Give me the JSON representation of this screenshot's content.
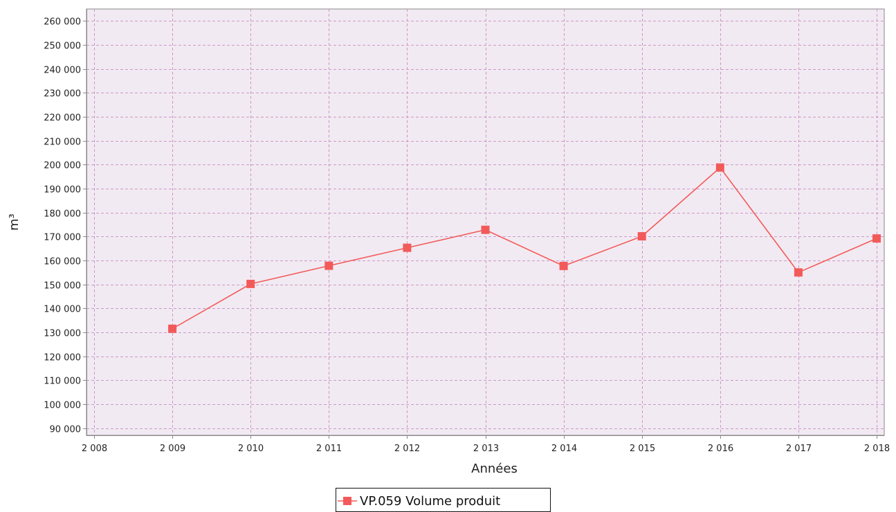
{
  "chart_data": {
    "type": "line",
    "title": "",
    "xlabel": "Années",
    "ylabel": "m³",
    "xlim": [
      2008,
      2018
    ],
    "ylim": [
      87000,
      265000
    ],
    "x_ticks": [
      2008,
      2009,
      2010,
      2011,
      2012,
      2013,
      2014,
      2015,
      2016,
      2017,
      2018
    ],
    "x_tick_labels": [
      "2 008",
      "2 009",
      "2 010",
      "2 011",
      "2 012",
      "2 013",
      "2 014",
      "2 015",
      "2 016",
      "2 017",
      "2 018"
    ],
    "y_ticks": [
      90000,
      100000,
      110000,
      120000,
      130000,
      140000,
      150000,
      160000,
      170000,
      180000,
      190000,
      200000,
      210000,
      220000,
      230000,
      240000,
      250000,
      260000
    ],
    "y_tick_labels": [
      "90 000",
      "100 000",
      "110 000",
      "120 000",
      "130 000",
      "140 000",
      "150 000",
      "160 000",
      "170 000",
      "180 000",
      "190 000",
      "200 000",
      "210 000",
      "220 000",
      "230 000",
      "240 000",
      "250 000",
      "260 000"
    ],
    "grid": true,
    "legend_position": "bottom",
    "series": [
      {
        "name": "VP.059 Volume produit",
        "color": "#f25a5a",
        "marker": "square",
        "x": [
          2009,
          2010,
          2011,
          2012,
          2013,
          2014,
          2015,
          2016,
          2017,
          2018
        ],
        "y": [
          131500,
          150200,
          157800,
          165300,
          172800,
          157700,
          170100,
          198800,
          155000,
          169200
        ]
      }
    ]
  },
  "colors": {
    "plot_background": "#f2eaf2",
    "grid": "#c89ac8",
    "axis": "#888888"
  }
}
